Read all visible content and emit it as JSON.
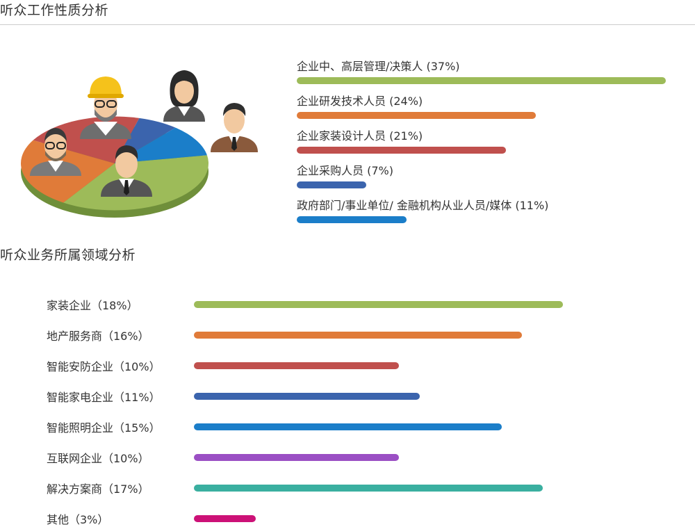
{
  "section1": {
    "title": "听众工作性质分析"
  },
  "section2": {
    "title": "听众业务所属领域分析"
  },
  "illustration": {
    "icon": "people-pie-illustration-icon",
    "slice_colors": [
      "#9dbb59",
      "#e07b39",
      "#c0504d",
      "#3b64ad",
      "#1b7ec9"
    ]
  },
  "chart_data": [
    {
      "type": "bar",
      "orientation": "horizontal",
      "title": "听众工作性质分析",
      "categories": [
        "企业中、高层管理/决策人 (37%)",
        "企业研发技术人员 (24%)",
        "企业家装设计人员 (21%)",
        "企业采购人员 (7%)",
        "政府部门/事业单位/ 金融机构从业人员/媒体 (11%)"
      ],
      "values": [
        37,
        24,
        21,
        7,
        11
      ],
      "colors": [
        "#9dbb59",
        "#e07b39",
        "#c0504d",
        "#3b64ad",
        "#1b7ec9"
      ],
      "legend": "none",
      "grid": false
    },
    {
      "type": "bar",
      "orientation": "horizontal",
      "title": "听众业务所属领域分析",
      "categories": [
        "家装企业（18%）",
        "地产服务商（16%）",
        "智能安防企业（10%）",
        "智能家电企业（11%）",
        "智能照明企业（15%）",
        "互联网企业（10%）",
        "解决方案商（17%）",
        "其他（3%）"
      ],
      "values": [
        18,
        16,
        10,
        11,
        15,
        10,
        17,
        3
      ],
      "colors": [
        "#9dbb59",
        "#e07b39",
        "#c0504d",
        "#3b64ad",
        "#1b7ec9",
        "#9b4fc4",
        "#3aafa0",
        "#cc1177"
      ],
      "legend": "none",
      "grid": false
    }
  ]
}
